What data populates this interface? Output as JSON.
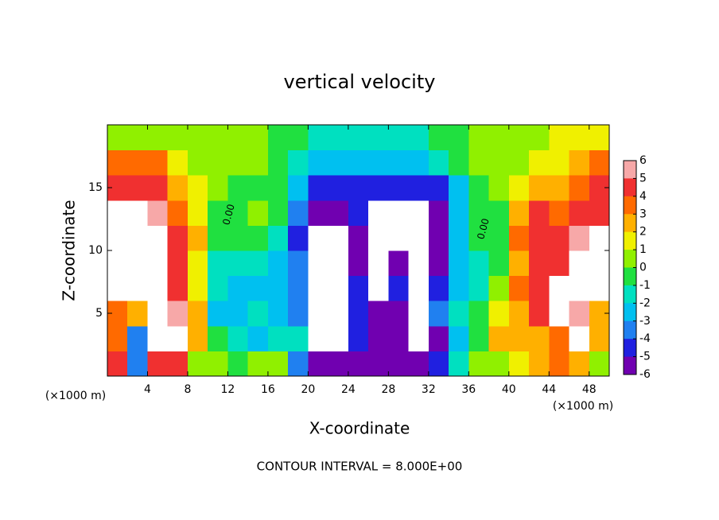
{
  "chart_data": {
    "type": "heatmap",
    "title": "vertical velocity",
    "x_label": "X-coordinate",
    "y_label": "Z-coordinate",
    "x_unit_label": "(×1000 m)",
    "footer": "CONTOUR INTERVAL = 8.000E+00",
    "contour_labels": [
      "0.00",
      "0.00"
    ],
    "xlim": [
      0,
      50
    ],
    "ylim": [
      0,
      20
    ],
    "xticks": [
      4,
      8,
      12,
      16,
      20,
      24,
      28,
      32,
      36,
      40,
      44,
      48
    ],
    "yticks": [
      5,
      10,
      15
    ],
    "x": [
      1,
      3,
      5,
      7,
      9,
      11,
      13,
      15,
      17,
      19,
      21,
      23,
      25,
      27,
      29,
      31,
      33,
      35,
      37,
      39,
      41,
      43,
      45,
      47,
      49
    ],
    "y": [
      1,
      3,
      5,
      7,
      9,
      11,
      13,
      15,
      17,
      19
    ],
    "z": [
      [
        5,
        -3,
        5,
        5,
        1,
        0.5,
        0,
        0.5,
        0.5,
        -3,
        -5,
        -5,
        -5,
        -5,
        -5,
        -5,
        -4,
        -1,
        0.5,
        1,
        2,
        3,
        4,
        3,
        1
      ],
      [
        4,
        -3,
        8,
        8,
        3,
        0,
        -1.5,
        -2,
        -1,
        -1.5,
        8,
        8,
        -4,
        -5,
        -5,
        8,
        -5,
        -2,
        0,
        3,
        3,
        3,
        4,
        8,
        3
      ],
      [
        4,
        3,
        8,
        6,
        3,
        -2,
        -2.5,
        -1,
        -2,
        -3,
        8,
        8,
        -4,
        -5,
        -5,
        8,
        -3,
        -1,
        -0.5,
        2,
        3,
        5,
        8,
        6,
        3
      ],
      [
        7,
        8,
        8,
        5,
        2,
        -1.5,
        -2,
        -2,
        -2.5,
        -3,
        8,
        8,
        -4.5,
        8,
        -4,
        8,
        -4.5,
        -2,
        -1,
        1,
        4,
        5,
        8,
        8,
        8
      ],
      [
        8,
        8,
        7,
        5,
        2,
        -1,
        -1.5,
        -1.5,
        -2,
        -3,
        8,
        8,
        -5,
        8,
        -5,
        8,
        -5,
        -2,
        -1,
        0,
        3,
        5,
        5,
        8,
        8
      ],
      [
        8,
        8,
        8,
        5,
        2.5,
        0,
        -0.5,
        -0.5,
        -1,
        -4,
        8,
        8,
        -5,
        8,
        8,
        8,
        -5,
        -2,
        0,
        -0.5,
        4,
        5,
        5,
        6,
        8
      ],
      [
        8,
        8,
        6,
        4,
        2,
        0,
        0,
        0.5,
        0,
        -3,
        -5,
        -5,
        -4.5,
        8,
        8,
        7,
        -5,
        -2.5,
        0,
        0,
        3,
        4.5,
        4,
        4.5,
        5
      ],
      [
        4.5,
        5,
        4.5,
        3,
        2,
        0.5,
        0,
        0,
        0,
        -2,
        -4,
        -4,
        -4,
        -4,
        -4.5,
        -4,
        -4,
        -2,
        0,
        0.5,
        1.5,
        2.5,
        3,
        4,
        4.5
      ],
      [
        4,
        4,
        3.5,
        2,
        1,
        0.5,
        0.5,
        0.5,
        0,
        -1.5,
        -2,
        -2.5,
        -2.5,
        -2.5,
        -2.5,
        -2,
        -1.5,
        -0.5,
        0.5,
        0.5,
        1,
        1.5,
        2,
        3,
        4
      ],
      [
        1,
        1,
        1,
        1,
        0.5,
        0.5,
        0.5,
        0.5,
        0,
        -0.5,
        -1,
        -1,
        -1,
        -1,
        -1,
        -1,
        -0.5,
        0,
        0.5,
        0.5,
        1,
        1,
        1.5,
        1.5,
        2
      ]
    ],
    "colorbar_ticks": [
      6,
      5,
      4,
      3,
      2,
      1,
      0,
      -1,
      -2,
      -3,
      -4,
      -5,
      -6
    ],
    "colors": [
      "#f7a8a8",
      "#f03030",
      "#ff6a00",
      "#ffb000",
      "#f0f000",
      "#90f000",
      "#20e040",
      "#00e0c0",
      "#00c0f0",
      "#2080f0",
      "#2020e0",
      "#7000b0"
    ],
    "out_of_range_color": "#ffffff"
  }
}
